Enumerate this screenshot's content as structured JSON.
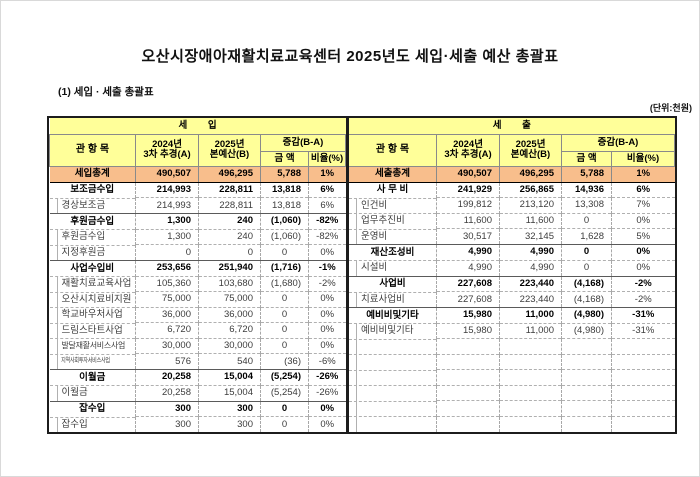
{
  "page": {
    "title": "오산시장애아재활치료교육센터 2025년도 세입·세출 예산 총괄표",
    "subtitle": "(1) 세입 · 세출 총괄표",
    "unit_label": "(단위:천원)"
  },
  "colors": {
    "header_bg": "#FFFF99",
    "total_row_bg": "#F8BE8C",
    "negative_red": "#E01410"
  },
  "tables": [
    {
      "id": "revenue",
      "section_title": "세 입",
      "headers": {
        "item": "관 항 목",
        "year_a": "2024년\n3차 추경(A)",
        "year_b": "2025년\n본예산(B)",
        "change": "증감(B-A)",
        "amount": "금 액",
        "ratio": "비율(%)"
      },
      "total": {
        "label": "세입총계",
        "a": "490,507",
        "b": "496,295",
        "amount": "5,788",
        "ratio": "1%"
      },
      "rows": [
        {
          "type": "cat",
          "label": "보조금수입",
          "a": "214,993",
          "b": "228,811",
          "amount": "13,818",
          "ratio": "6%"
        },
        {
          "type": "sub",
          "label": "경상보조금",
          "a": "214,993",
          "b": "228,811",
          "amount": "13,818",
          "ratio": "6%"
        },
        {
          "type": "cat",
          "label": "후원금수입",
          "a": "1,300",
          "b": "240",
          "amount": "(1,060)",
          "neg": true,
          "ratio": "-82%"
        },
        {
          "type": "sub",
          "label": "후원금수입",
          "a": "1,300",
          "b": "240",
          "amount": "(1,060)",
          "neg": true,
          "ratio": "-82%"
        },
        {
          "type": "sub",
          "label": "지정후원금",
          "a": "0",
          "b": "0",
          "amount": "0",
          "ratio": "0%"
        },
        {
          "type": "cat",
          "label": "사업수입비",
          "a": "253,656",
          "b": "251,940",
          "amount": "(1,716)",
          "neg": true,
          "ratio": "-1%"
        },
        {
          "type": "sub",
          "label": "재활치료교육사업",
          "a": "105,360",
          "b": "103,680",
          "amount": "(1,680)",
          "neg": true,
          "ratio": "-2%"
        },
        {
          "type": "sub",
          "label": "오산시치료비지원",
          "a": "75,000",
          "b": "75,000",
          "amount": "0",
          "ratio": "0%"
        },
        {
          "type": "sub",
          "label": "학교바우처사업",
          "a": "36,000",
          "b": "36,000",
          "amount": "0",
          "ratio": "0%"
        },
        {
          "type": "sub",
          "label": "드림스타트사업",
          "a": "6,720",
          "b": "6,720",
          "amount": "0",
          "ratio": "0%"
        },
        {
          "type": "sub",
          "label": "발달재활서비스사업",
          "size": "s",
          "a": "30,000",
          "b": "30,000",
          "amount": "0",
          "ratio": "0%"
        },
        {
          "type": "sub",
          "label": "지역사회투자서비스사업",
          "size": "xs",
          "a": "576",
          "b": "540",
          "amount": "(36)",
          "neg": true,
          "ratio": "-6%"
        },
        {
          "type": "cat",
          "label": "이월금",
          "a": "20,258",
          "b": "15,004",
          "amount": "(5,254)",
          "neg": true,
          "ratio": "-26%"
        },
        {
          "type": "sub",
          "label": "이월금",
          "a": "20,258",
          "b": "15,004",
          "amount": "(5,254)",
          "neg": true,
          "ratio": "-26%"
        },
        {
          "type": "cat",
          "label": "잡수입",
          "a": "300",
          "b": "300",
          "amount": "0",
          "ratio": "0%"
        },
        {
          "type": "sub",
          "label": "잡수입",
          "a": "300",
          "b": "300",
          "amount": "0",
          "ratio": "0%"
        }
      ]
    },
    {
      "id": "expenditure",
      "section_title": "세 출",
      "headers": {
        "item": "관 항 목",
        "year_a": "2024년\n3차 추경(A)",
        "year_b": "2025년\n본예산(B)",
        "change": "증감(B-A)",
        "amount": "금 액",
        "ratio": "비율(%)"
      },
      "total": {
        "label": "세출총계",
        "a": "490,507",
        "b": "496,295",
        "amount": "5,788",
        "ratio": "1%"
      },
      "rows": [
        {
          "type": "cat",
          "label": "사 무 비",
          "a": "241,929",
          "b": "256,865",
          "amount": "14,936",
          "ratio": "6%"
        },
        {
          "type": "sub",
          "label": "인건비",
          "a": "199,812",
          "b": "213,120",
          "amount": "13,308",
          "ratio": "7%"
        },
        {
          "type": "sub",
          "label": "업무추진비",
          "a": "11,600",
          "b": "11,600",
          "amount": "0",
          "ratio": "0%"
        },
        {
          "type": "sub",
          "label": "운영비",
          "a": "30,517",
          "b": "32,145",
          "amount": "1,628",
          "ratio": "5%"
        },
        {
          "type": "cat",
          "label": "재산조성비",
          "a": "4,990",
          "b": "4,990",
          "amount": "0",
          "ratio": "0%"
        },
        {
          "type": "sub",
          "label": "시설비",
          "a": "4,990",
          "b": "4,990",
          "amount": "0",
          "ratio": "0%"
        },
        {
          "type": "cat",
          "label": "사업비",
          "a": "227,608",
          "b": "223,440",
          "amount": "(4,168)",
          "neg": true,
          "ratio": "-2%"
        },
        {
          "type": "sub",
          "label": "치료사업비",
          "a": "227,608",
          "b": "223,440",
          "amount": "(4,168)",
          "neg": true,
          "ratio": "-2%"
        },
        {
          "type": "cat",
          "label": "예비비및기타",
          "a": "15,980",
          "b": "11,000",
          "amount": "(4,980)",
          "neg": true,
          "ratio": "-31%"
        },
        {
          "type": "sub",
          "label": "예비비및기타",
          "a": "15,980",
          "b": "11,000",
          "amount": "(4,980)",
          "neg": true,
          "ratio": "-31%"
        },
        {
          "type": "sub",
          "label": "",
          "a": "",
          "b": "",
          "amount": "",
          "ratio": ""
        },
        {
          "type": "sub",
          "label": "",
          "a": "",
          "b": "",
          "amount": "",
          "ratio": ""
        },
        {
          "type": "sub",
          "label": "",
          "a": "",
          "b": "",
          "amount": "",
          "ratio": ""
        },
        {
          "type": "sub",
          "label": "",
          "a": "",
          "b": "",
          "amount": "",
          "ratio": ""
        },
        {
          "type": "sub",
          "label": "",
          "a": "",
          "b": "",
          "amount": "",
          "ratio": ""
        },
        {
          "type": "sub",
          "label": "",
          "a": "",
          "b": "",
          "amount": "",
          "ratio": ""
        }
      ]
    }
  ]
}
